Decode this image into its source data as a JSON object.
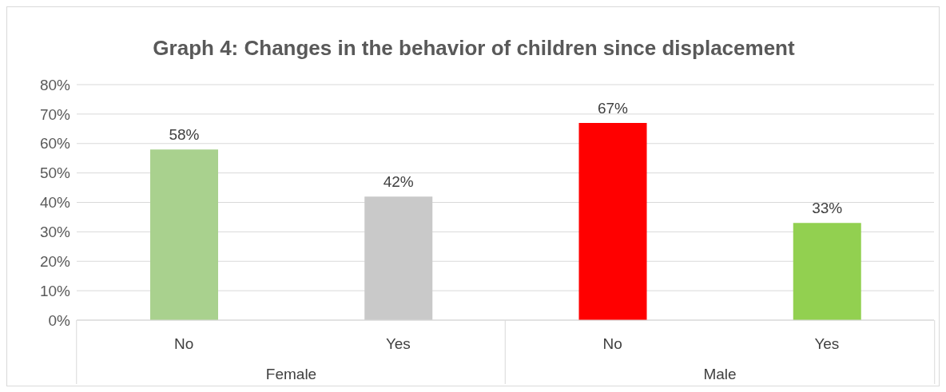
{
  "chart_data": {
    "type": "bar",
    "title": "Graph 4: Changes in the behavior of children since displacement",
    "categories": [
      "No",
      "Yes",
      "No",
      "Yes"
    ],
    "values": [
      58,
      42,
      67,
      33
    ],
    "colors": [
      "#a9d18e",
      "#c9c9c9",
      "#ff0000",
      "#92d050"
    ],
    "value_labels": [
      "58%",
      "42%",
      "67%",
      "33%"
    ],
    "annotations": [
      "Female",
      "Male"
    ],
    "ylim": [
      0,
      80
    ],
    "yticks": [
      {
        "value": 0,
        "label": "0%"
      },
      {
        "value": 10,
        "label": "10%"
      },
      {
        "value": 20,
        "label": "20%"
      },
      {
        "value": 30,
        "label": "30%"
      },
      {
        "value": 40,
        "label": "40%"
      },
      {
        "value": 50,
        "label": "50%"
      },
      {
        "value": 60,
        "label": "60%"
      },
      {
        "value": 70,
        "label": "70%"
      },
      {
        "value": 80,
        "label": "80%"
      }
    ],
    "grid": "y",
    "legend": false
  }
}
